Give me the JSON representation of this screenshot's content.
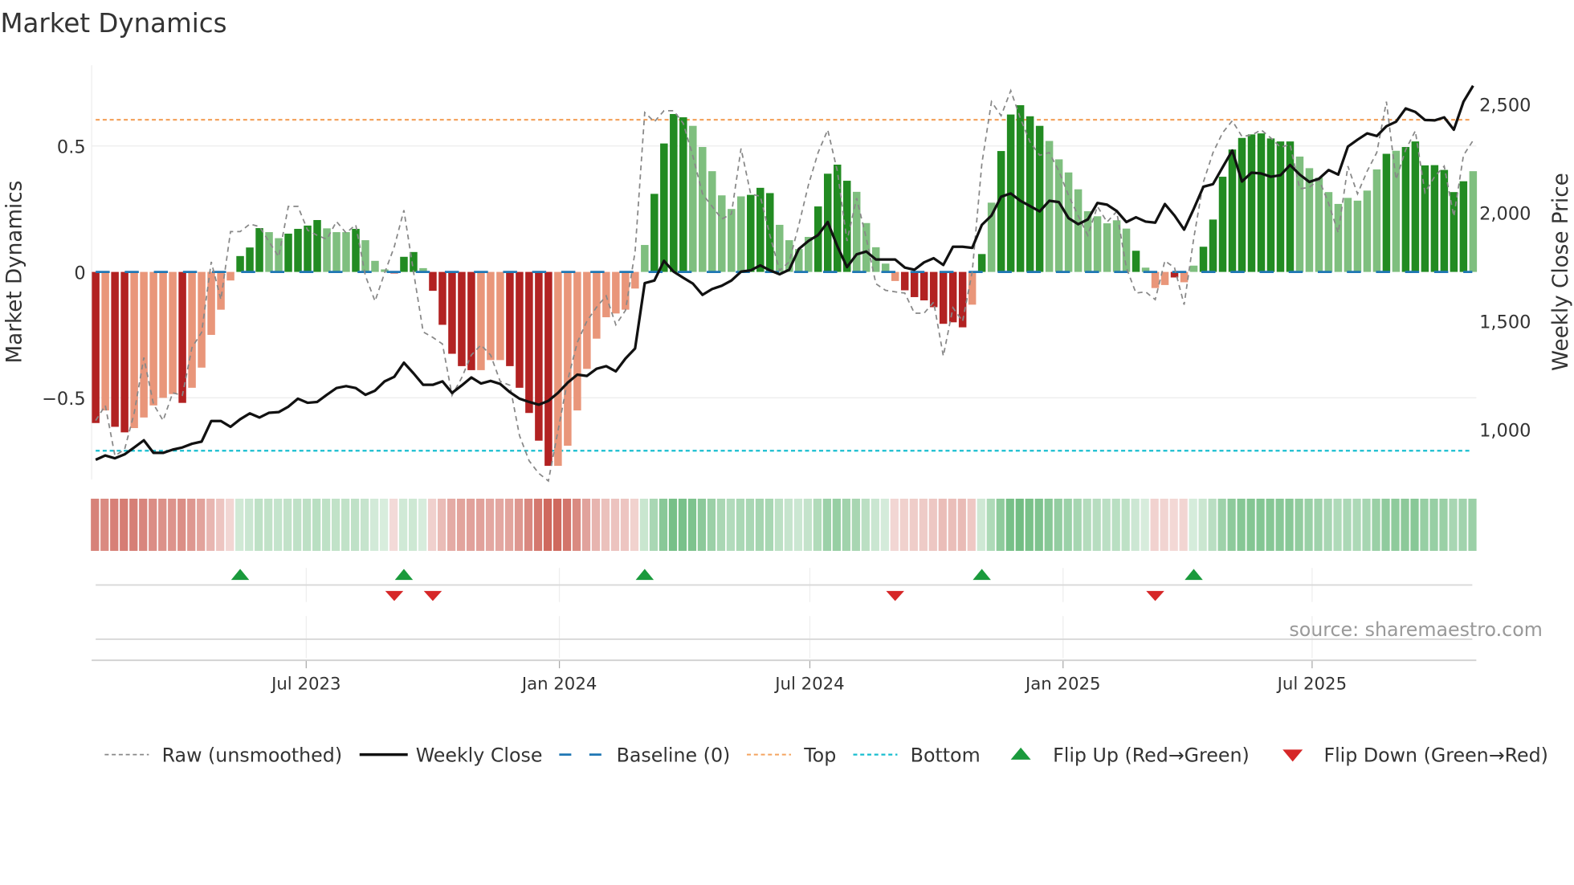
{
  "chart_data": {
    "type": "bar",
    "title": "Market Dynamics",
    "ylabel": "Market Dynamics",
    "y2label": "Weekly Close Price",
    "ylim": [
      -0.83,
      0.82
    ],
    "y2lim": [
      800,
      2600
    ],
    "yticks": [
      {
        "v": 0.5,
        "label": "0.5"
      },
      {
        "v": 0,
        "label": "0"
      },
      {
        "v": -0.5,
        "label": "−0.5"
      }
    ],
    "y2ticks": [
      {
        "v": 2500,
        "label": "2,500"
      },
      {
        "v": 2000,
        "label": "2,000"
      },
      {
        "v": 1500,
        "label": "1,500"
      },
      {
        "v": 1000,
        "label": "1,000"
      }
    ],
    "x_start_date": "2023-01-29",
    "x_frequency": "weekly",
    "xticks": [
      {
        "date": "2023-07-01",
        "label": "Jul 2023"
      },
      {
        "date": "2024-01-01",
        "label": "Jan 2024"
      },
      {
        "date": "2024-07-01",
        "label": "Jul 2024"
      },
      {
        "date": "2025-01-01",
        "label": "Jan 2025"
      },
      {
        "date": "2025-07-01",
        "label": "Jul 2025"
      }
    ],
    "top_level": 0.604,
    "bottom_level": -0.71,
    "baseline": 0,
    "dynamics": [
      -0.6,
      -0.55,
      -0.615,
      -0.637,
      -0.62,
      -0.578,
      -0.53,
      -0.5,
      -0.485,
      -0.52,
      -0.46,
      -0.38,
      -0.25,
      -0.15,
      -0.034,
      0.063,
      0.097,
      0.174,
      0.158,
      0.134,
      0.152,
      0.171,
      0.184,
      0.206,
      0.173,
      0.158,
      0.158,
      0.171,
      0.126,
      0.044,
      0.01,
      -0.006,
      0.06,
      0.079,
      0.015,
      -0.075,
      -0.21,
      -0.325,
      -0.374,
      -0.39,
      -0.39,
      -0.35,
      -0.35,
      -0.374,
      -0.46,
      -0.56,
      -0.67,
      -0.77,
      -0.77,
      -0.69,
      -0.55,
      -0.385,
      -0.265,
      -0.18,
      -0.165,
      -0.15,
      -0.066,
      0.107,
      0.31,
      0.51,
      0.627,
      0.614,
      0.58,
      0.496,
      0.4,
      0.304,
      0.25,
      0.3,
      0.306,
      0.334,
      0.313,
      0.187,
      0.126,
      0.091,
      0.139,
      0.26,
      0.39,
      0.426,
      0.362,
      0.318,
      0.194,
      0.098,
      0.033,
      -0.036,
      -0.073,
      -0.1,
      -0.113,
      -0.14,
      -0.206,
      -0.2,
      -0.22,
      -0.13,
      0.071,
      0.275,
      0.48,
      0.625,
      0.662,
      0.618,
      0.58,
      0.52,
      0.447,
      0.395,
      0.328,
      0.241,
      0.221,
      0.193,
      0.205,
      0.172,
      0.084,
      0.017,
      -0.064,
      -0.052,
      -0.022,
      -0.041,
      0.025,
      0.1,
      0.208,
      0.378,
      0.486,
      0.532,
      0.546,
      0.55,
      0.53,
      0.518,
      0.518,
      0.458,
      0.412,
      0.374,
      0.317,
      0.27,
      0.294,
      0.283,
      0.323,
      0.407,
      0.469,
      0.481,
      0.496,
      0.518,
      0.423,
      0.424,
      0.405,
      0.317,
      0.36,
      0.4
    ],
    "strength": "dlddllllldllllldddllddddllldllldddldddddllldddddllllllllllddddlllllldddllllddddllllldddddddldldddddllllllllldllldllddddddddddllllllllldldddddddldlldd",
    "raw": [
      -0.59,
      -0.53,
      -0.73,
      -0.705,
      -0.56,
      -0.34,
      -0.525,
      -0.59,
      -0.48,
      -0.49,
      -0.3,
      -0.24,
      0.04,
      -0.11,
      0.16,
      0.16,
      0.19,
      0.18,
      0.12,
      0.06,
      0.26,
      0.26,
      0.166,
      0.145,
      0.13,
      0.2,
      0.155,
      0.187,
      -0.015,
      -0.116,
      -0.004,
      0.1,
      0.245,
      0,
      -0.238,
      -0.26,
      -0.286,
      -0.49,
      -0.42,
      -0.33,
      -0.29,
      -0.33,
      -0.435,
      -0.45,
      -0.65,
      -0.75,
      -0.8,
      -0.83,
      -0.63,
      -0.43,
      -0.28,
      -0.195,
      -0.14,
      -0.095,
      -0.21,
      -0.153,
      0.08,
      0.633,
      0.596,
      0.64,
      0.64,
      0.59,
      0.46,
      0.31,
      0.26,
      0.21,
      0.23,
      0.49,
      0.31,
      0.3,
      0.145,
      0.006,
      0.04,
      0.187,
      0.346,
      0.474,
      0.564,
      0.4,
      0.123,
      0.293,
      0.134,
      -0.047,
      -0.073,
      -0.079,
      -0.084,
      -0.164,
      -0.164,
      -0.12,
      -0.334,
      -0.142,
      -0.196,
      0,
      0.43,
      0.676,
      0.62,
      0.72,
      0.61,
      0.516,
      0.463,
      0.474,
      0.4,
      0.304,
      0.223,
      0.145,
      0.26,
      0.198,
      0.24,
      0.017,
      -0.084,
      -0.079,
      -0.11,
      0.044,
      0.017,
      -0.13,
      0.134,
      0.357,
      0.474,
      0.553,
      0.6,
      0.538,
      0.543,
      0.564,
      0.532,
      0.495,
      0.506,
      0.33,
      0.336,
      0.367,
      0.272,
      0.155,
      0.42,
      0.31,
      0.4,
      0.474,
      0.676,
      0.367,
      0.485,
      0.56,
      0.315,
      0.378,
      0.42,
      0.22,
      0.463,
      0.522
    ],
    "weekly_close": [
      860,
      880,
      867,
      885,
      917,
      950,
      892,
      892,
      907,
      917,
      934,
      944,
      1039,
      1039,
      1012,
      1047,
      1074,
      1055,
      1077,
      1080,
      1105,
      1142,
      1123,
      1127,
      1160,
      1191,
      1200,
      1191,
      1160,
      1179,
      1222,
      1243,
      1308,
      1259,
      1206,
      1206,
      1222,
      1169,
      1203,
      1240,
      1212,
      1224,
      1210,
      1172,
      1142,
      1127,
      1114,
      1132,
      1169,
      1216,
      1253,
      1247,
      1280,
      1292,
      1268,
      1327,
      1374,
      1675,
      1687,
      1778,
      1728,
      1700,
      1673,
      1621,
      1648,
      1663,
      1687,
      1728,
      1734,
      1757,
      1734,
      1716,
      1737,
      1833,
      1870,
      1897,
      1957,
      1845,
      1749,
      1808,
      1821,
      1784,
      1784,
      1784,
      1747,
      1737,
      1771,
      1790,
      1759,
      1843,
      1843,
      1838,
      1944,
      1987,
      2074,
      2089,
      2055,
      2031,
      2006,
      2055,
      2049,
      1975,
      1947,
      1969,
      2045,
      2037,
      2008,
      1957,
      1979,
      1959,
      1954,
      2040,
      1987,
      1922,
      2018,
      2120,
      2132,
      2210,
      2287,
      2144,
      2185,
      2181,
      2166,
      2173,
      2220,
      2176,
      2142,
      2157,
      2197,
      2176,
      2305,
      2337,
      2366,
      2354,
      2399,
      2420,
      2481,
      2465,
      2428,
      2426,
      2440,
      2383,
      2512,
      2586
    ],
    "flip_up_weeks": [
      15,
      32,
      57,
      92,
      114
    ],
    "flip_down_weeks": [
      31,
      35,
      83,
      110
    ],
    "legend": [
      {
        "key": "raw",
        "label": "Raw (unsmoothed)"
      },
      {
        "key": "close",
        "label": "Weekly Close"
      },
      {
        "key": "baseline",
        "label": "Baseline (0)"
      },
      {
        "key": "top",
        "label": "Top"
      },
      {
        "key": "bottom",
        "label": "Bottom"
      },
      {
        "key": "flip_up",
        "label": "Flip Up (Red→Green)"
      },
      {
        "key": "flip_down",
        "label": "Flip Down (Green→Red)"
      }
    ],
    "legend_position": "bottom",
    "source": "source: sharemaestro.com",
    "colors": {
      "dark_red": "#b22222",
      "light_red": "#e9967a",
      "dark_green": "#228b22",
      "light_green": "#7fbf7f",
      "raw": "#888888",
      "close": "#111111",
      "baseline": "#1f77b4",
      "top": "#f4a460",
      "bottom": "#17becf",
      "flip_up": "#1a9a3c",
      "flip_down": "#d62728"
    }
  }
}
